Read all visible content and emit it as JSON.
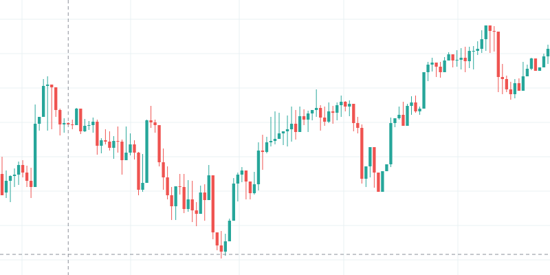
{
  "colors": {
    "up": "#26a69a",
    "down": "#ef5350",
    "grid": "#e8f1f3",
    "crosshair": "#8a8f99",
    "background": "#ffffff"
  },
  "chart_data": {
    "type": "candlestick",
    "grid": true,
    "ylim": [
      0,
      400
    ],
    "crosshair": {
      "candle_index": 16,
      "price": 30
    },
    "candles": [
      [
        147,
        116,
        172,
        120
      ],
      [
        120,
        137,
        152,
        112
      ],
      [
        137,
        144,
        145,
        106
      ],
      [
        144,
        146,
        155,
        128
      ],
      [
        146,
        160,
        165,
        131
      ],
      [
        160,
        149,
        167,
        142
      ],
      [
        149,
        137,
        159,
        128
      ],
      [
        137,
        128,
        156,
        112
      ],
      [
        128,
        220,
        248,
        195
      ],
      [
        220,
        230,
        227,
        210
      ],
      [
        230,
        275,
        285,
        236
      ],
      [
        275,
        277,
        289,
        210
      ],
      [
        277,
        273,
        277,
        212
      ],
      [
        273,
        240,
        265,
        230
      ],
      [
        240,
        219,
        242,
        203
      ],
      [
        219,
        221,
        228,
        207
      ],
      [
        221,
        219,
        222,
        218
      ],
      [
        219,
        218,
        226,
        212
      ],
      [
        218,
        242,
        243,
        218
      ],
      [
        242,
        209,
        242,
        205
      ],
      [
        209,
        217,
        227,
        208
      ],
      [
        217,
        218,
        224,
        211
      ],
      [
        218,
        223,
        229,
        207
      ],
      [
        223,
        188,
        226,
        175
      ],
      [
        188,
        196,
        199,
        177
      ],
      [
        196,
        194,
        212,
        190
      ],
      [
        194,
        185,
        209,
        181
      ],
      [
        185,
        195,
        202,
        169
      ],
      [
        195,
        194,
        216,
        178
      ],
      [
        194,
        167,
        197,
        146
      ],
      [
        167,
        178,
        216,
        178
      ],
      [
        178,
        190,
        206,
        174
      ],
      [
        190,
        178,
        196,
        168
      ],
      [
        178,
        124,
        179,
        116
      ],
      [
        124,
        134,
        176,
        121
      ],
      [
        134,
        225,
        226,
        212
      ],
      [
        225,
        222,
        246,
        214
      ],
      [
        222,
        218,
        226,
        207
      ],
      [
        218,
        164,
        218,
        158
      ],
      [
        164,
        142,
        184,
        124
      ],
      [
        142,
        116,
        158,
        110
      ],
      [
        116,
        100,
        128,
        80
      ],
      [
        100,
        129,
        125,
        80
      ],
      [
        129,
        128,
        147,
        117
      ],
      [
        128,
        96,
        147,
        90
      ],
      [
        96,
        110,
        138,
        92
      ],
      [
        110,
        94,
        137,
        77
      ],
      [
        94,
        89,
        106,
        71
      ],
      [
        89,
        120,
        130,
        90
      ],
      [
        120,
        109,
        132,
        79
      ],
      [
        109,
        145,
        160,
        109
      ],
      [
        145,
        62,
        114,
        52
      ],
      [
        62,
        43,
        59,
        36
      ],
      [
        43,
        34,
        64,
        24
      ],
      [
        34,
        49,
        60,
        28
      ],
      [
        49,
        79,
        82,
        49
      ],
      [
        79,
        133,
        141,
        79
      ],
      [
        133,
        146,
        149,
        107
      ],
      [
        146,
        152,
        157,
        135
      ],
      [
        152,
        136,
        149,
        110
      ],
      [
        136,
        119,
        130,
        110
      ],
      [
        119,
        132,
        150,
        117
      ],
      [
        132,
        181,
        193,
        123
      ],
      [
        181,
        179,
        204,
        153
      ],
      [
        179,
        193,
        201,
        177
      ],
      [
        193,
        195,
        230,
        187
      ],
      [
        195,
        198,
        238,
        190
      ],
      [
        198,
        206,
        236,
        199
      ],
      [
        206,
        209,
        205,
        189
      ],
      [
        209,
        212,
        232,
        187
      ],
      [
        212,
        220,
        245,
        194
      ],
      [
        220,
        208,
        240,
        197
      ],
      [
        208,
        231,
        245,
        219
      ],
      [
        231,
        226,
        241,
        218
      ],
      [
        226,
        235,
        239,
        208
      ],
      [
        235,
        240,
        235,
        225
      ],
      [
        240,
        243,
        270,
        230
      ],
      [
        243,
        229,
        247,
        210
      ],
      [
        229,
        223,
        245,
        217
      ],
      [
        223,
        238,
        251,
        221
      ],
      [
        238,
        236,
        246,
        220
      ],
      [
        236,
        247,
        251,
        225
      ],
      [
        247,
        252,
        261,
        230
      ],
      [
        252,
        245,
        253,
        238
      ],
      [
        245,
        249,
        254,
        231
      ],
      [
        249,
        221,
        224,
        209
      ],
      [
        221,
        214,
        230,
        206
      ],
      [
        214,
        140,
        219,
        133
      ],
      [
        140,
        158,
        139,
        128
      ],
      [
        158,
        186,
        183,
        142
      ],
      [
        186,
        149,
        145,
        127
      ],
      [
        149,
        121,
        146,
        126
      ],
      [
        121,
        151,
        149,
        153
      ],
      [
        151,
        161,
        153,
        157
      ],
      [
        161,
        221,
        229,
        157
      ],
      [
        221,
        228,
        227,
        215
      ],
      [
        228,
        233,
        245,
        226
      ],
      [
        233,
        217,
        252,
        228
      ],
      [
        217,
        246,
        249,
        240
      ],
      [
        246,
        251,
        260,
        233
      ],
      [
        251,
        238,
        261,
        236
      ],
      [
        238,
        242,
        245,
        233
      ],
      [
        242,
        295,
        294,
        273
      ],
      [
        295,
        306,
        310,
        282
      ],
      [
        306,
        309,
        316,
        296
      ],
      [
        309,
        303,
        305,
        288
      ],
      [
        303,
        295,
        310,
        287
      ],
      [
        295,
        312,
        317,
        303
      ],
      [
        312,
        321,
        324,
        313
      ],
      [
        321,
        312,
        321,
        302
      ],
      [
        312,
        313,
        327,
        303
      ],
      [
        313,
        316,
        330,
        299
      ],
      [
        316,
        311,
        332,
        295
      ],
      [
        311,
        326,
        332,
        301
      ],
      [
        326,
        326,
        333,
        299
      ],
      [
        326,
        329,
        340,
        320
      ],
      [
        329,
        343,
        356,
        323
      ],
      [
        343,
        363,
        360,
        326
      ],
      [
        363,
        355,
        357,
        323
      ],
      [
        355,
        354,
        362,
        325
      ],
      [
        354,
        288,
        287,
        266
      ],
      [
        288,
        285,
        307,
        263
      ],
      [
        285,
        270,
        290,
        266
      ],
      [
        270,
        263,
        281,
        255
      ],
      [
        263,
        279,
        285,
        257
      ],
      [
        279,
        268,
        286,
        271
      ],
      [
        268,
        289,
        310,
        270
      ],
      [
        289,
        300,
        306,
        290
      ],
      [
        300,
        315,
        316,
        298
      ],
      [
        315,
        297,
        314,
        304
      ],
      [
        297,
        302,
        302,
        312
      ],
      [
        302,
        318,
        322,
        309
      ],
      [
        318,
        329,
        335,
        307
      ]
    ]
  }
}
